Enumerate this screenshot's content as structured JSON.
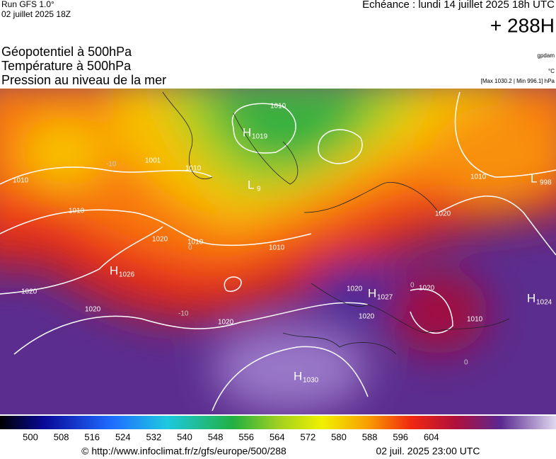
{
  "header": {
    "run": "Run GFS 1.0°",
    "run_date": "02 juillet 2025 18Z",
    "valid": "Echéance : lundi 14 juillet 2025 18h UTC",
    "lead": "+ 288H"
  },
  "layers": [
    "Géopotentiel à 500hPa",
    "Température à 500hPa",
    "Pression au niveau de la mer"
  ],
  "units": [
    "gpdam",
    "°C",
    "[Max 1030.2 | Min 996.1] hPa"
  ],
  "centers": [
    {
      "letter": "H",
      "pressure": "1019"
    },
    {
      "letter": "L",
      "pressure": "9"
    },
    {
      "letter": "H",
      "pressure": "1026"
    },
    {
      "letter": "H",
      "pressure": "1027"
    },
    {
      "letter": "H",
      "pressure": "1030"
    },
    {
      "letter": "H",
      "pressure": "1024"
    },
    {
      "letter": "L",
      "pressure": "998"
    }
  ],
  "isobar_labels": [
    "1001",
    "1010",
    "1010",
    "1020",
    "1010",
    "1010",
    "1020",
    "1020",
    "1020",
    "1020",
    "1020",
    "1020",
    "1020",
    "1010",
    "1010",
    "1010",
    "1010"
  ],
  "isotherm_labels": [
    "-10",
    "0",
    "0",
    "0",
    "-10"
  ],
  "colorbar": {
    "labels": [
      "500",
      "508",
      "516",
      "524",
      "532",
      "540",
      "548",
      "556",
      "564",
      "572",
      "580",
      "588",
      "596",
      "604"
    ]
  },
  "footer": {
    "url": "© http://www.infoclimat.fr/z/gfs/europe/500/288",
    "date": "02 juil. 2025 23:00 UTC"
  }
}
